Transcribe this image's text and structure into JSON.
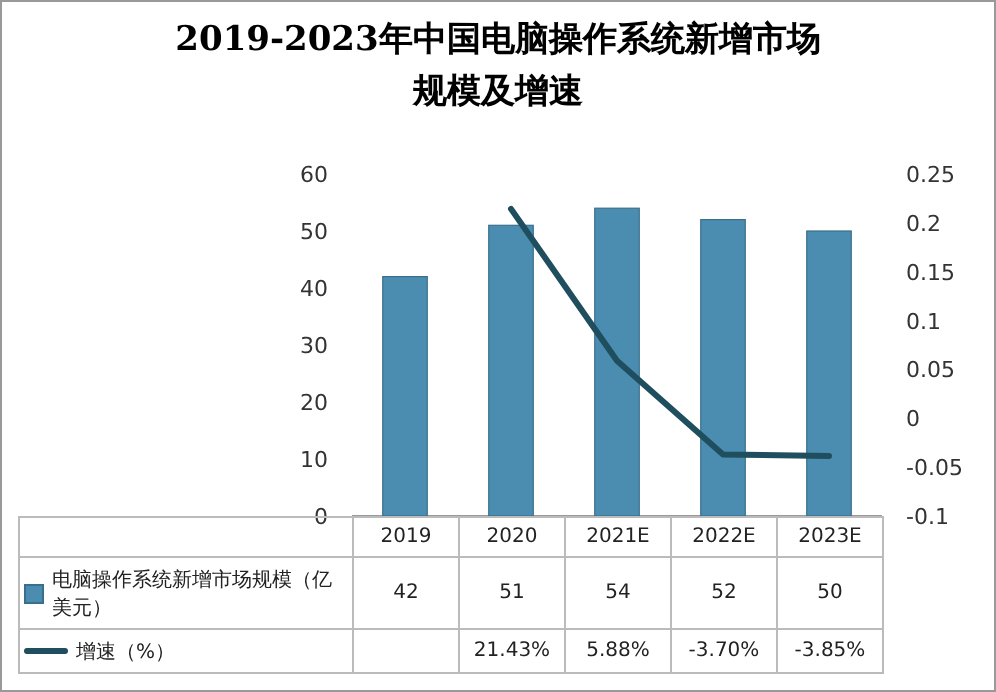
{
  "chart_data": {
    "type": "bar",
    "title": "2019-2023年中国电脑操作系统新增市场规模及增速",
    "categories": [
      "2019",
      "2020",
      "2021E",
      "2022E",
      "2023E"
    ],
    "series": [
      {
        "name": "电脑操作系统新增市场规模（亿美元）",
        "color": "#4a8db0",
        "values": [
          42,
          51,
          54,
          52,
          50
        ],
        "value_labels": [
          "42",
          "51",
          "54",
          "52",
          "50"
        ]
      },
      {
        "type": "line",
        "name": "增速（%）",
        "color": "#1f4e5f",
        "axis": "y2",
        "values": [
          null,
          0.2143,
          0.0588,
          -0.037,
          -0.0385
        ],
        "value_labels": [
          null,
          "21.43%",
          "5.88%",
          "-3.70%",
          "-3.85%"
        ]
      }
    ],
    "ylim": [
      0,
      60
    ],
    "yticks": [
      0,
      10,
      20,
      30,
      40,
      50,
      60
    ],
    "y2lim": [
      -0.1,
      0.25
    ],
    "y2ticks": [
      -0.1,
      -0.05,
      0,
      0.05,
      0.1,
      0.15,
      0.2,
      0.25
    ],
    "legend": "bottom",
    "grid": false
  }
}
